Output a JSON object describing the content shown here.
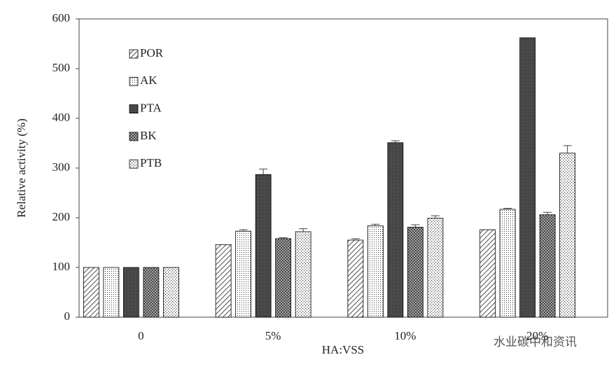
{
  "chart_data": {
    "type": "bar",
    "x_label": "HA:VSS",
    "y_label": "Relative activity (%)",
    "categories": [
      "0",
      "5%",
      "10%",
      "20%"
    ],
    "series": [
      {
        "name": "POR",
        "color": "#000000",
        "pattern": "diagonal",
        "values": [
          100,
          146,
          155,
          176
        ],
        "errors": [
          0,
          0,
          3,
          0
        ]
      },
      {
        "name": "AK",
        "color": "#000000",
        "pattern": "fine-dots",
        "values": [
          100,
          173,
          184,
          217
        ],
        "errors": [
          0,
          3,
          3,
          2
        ]
      },
      {
        "name": "PTA",
        "color": "#000000",
        "pattern": "dense",
        "values": [
          100,
          287,
          351,
          562
        ],
        "errors": [
          0,
          11,
          4,
          0
        ]
      },
      {
        "name": "BK",
        "color": "#000000",
        "pattern": "crosshatch",
        "values": [
          100,
          158,
          181,
          206
        ],
        "errors": [
          0,
          2,
          5,
          5
        ]
      },
      {
        "name": "PTB",
        "color": "#000000",
        "pattern": "sparse-dots",
        "values": [
          100,
          172,
          199,
          330
        ],
        "errors": [
          0,
          6,
          5,
          15
        ]
      }
    ],
    "ylim": [
      0,
      600
    ],
    "yticks": [
      0,
      100,
      200,
      300,
      400,
      500,
      600
    ],
    "grid": false,
    "legend": "upper-left",
    "watermark": "水业碳中和资讯"
  }
}
